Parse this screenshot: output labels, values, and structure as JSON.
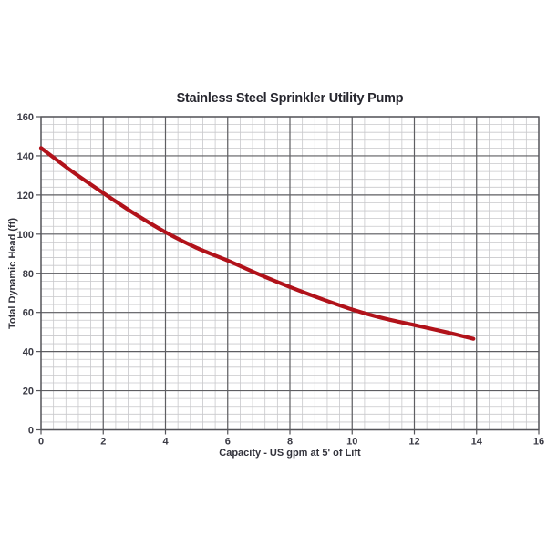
{
  "page": {
    "background": "#ffffff"
  },
  "chart_data": {
    "type": "line",
    "title": "Stainless Steel Sprinkler Utility Pump",
    "xlabel": "Capacity - US gpm at 5' of Lift",
    "ylabel": "Total Dynamic Head (ft)",
    "xlim": [
      0,
      16
    ],
    "ylim": [
      0,
      160
    ],
    "x_major_ticks": [
      0,
      2,
      4,
      6,
      8,
      10,
      12,
      14,
      16
    ],
    "y_major_ticks": [
      0,
      20,
      40,
      60,
      80,
      100,
      120,
      140,
      160
    ],
    "x_minor_step": 0.4,
    "y_minor_step": 4,
    "grid": "major and minor shown",
    "legend": "none",
    "series": [
      {
        "name": "pump-performance-curve",
        "color": "#b1121a",
        "x": [
          0,
          1,
          2,
          3,
          4,
          5,
          6,
          7,
          8,
          9,
          10,
          11,
          12,
          13,
          13.9
        ],
        "y": [
          144,
          132,
          121,
          110.5,
          101,
          93,
          86.5,
          79.5,
          73,
          67,
          61.5,
          57,
          53.5,
          50,
          46.5
        ]
      }
    ]
  },
  "colors": {
    "curve": "#b1121a",
    "grid_minor": "#c8c8cb",
    "grid_major": "#5e5e62",
    "plot_border": "#55555a",
    "text": "#33333c"
  }
}
